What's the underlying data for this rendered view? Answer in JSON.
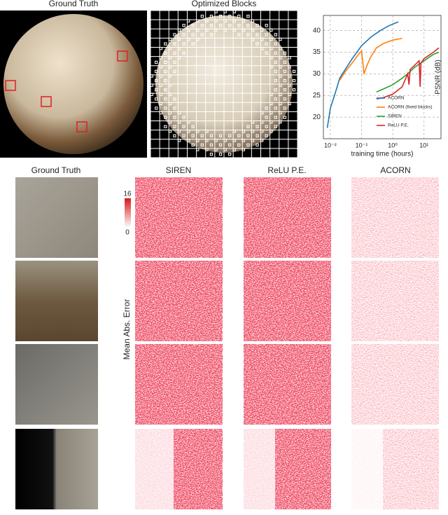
{
  "panels": {
    "left_title": "Ground Truth",
    "middle_title": "Optimized Blocks"
  },
  "columns": [
    "Ground Truth",
    "SIREN",
    "ReLU P.E.",
    "ACORN"
  ],
  "colorbar": {
    "max": 16,
    "min": 0,
    "label": "Mean Abs. Error"
  },
  "chart_data": {
    "type": "line",
    "xlabel": "training time (hours)",
    "ylabel": "PSNR (dB)",
    "xscale": "log",
    "grid": true,
    "legend": "lower right",
    "xlim": [
      0.006,
      35
    ],
    "ylim": [
      15,
      43.5
    ],
    "xticks": [
      {
        "value": 0.01,
        "label": "10⁻²"
      },
      {
        "value": 0.1,
        "label": "10⁻¹"
      },
      {
        "value": 1,
        "label": "10⁰"
      },
      {
        "value": 10,
        "label": "10¹"
      }
    ],
    "yticks": [
      20,
      25,
      30,
      35,
      40
    ],
    "series": [
      {
        "name": "ACORN",
        "color": "#1f77b4",
        "x": [
          0.008,
          0.01,
          0.015,
          0.02,
          0.03,
          0.05,
          0.1,
          0.2,
          0.4,
          0.7,
          1,
          1.5
        ],
        "values": [
          17.5,
          22,
          26,
          29,
          31,
          33.5,
          36.5,
          38.5,
          40,
          41,
          41.5,
          42
        ]
      },
      {
        "name": "ACORN (fixed blocks)",
        "color": "#ff7f0e",
        "x": [
          0.02,
          0.03,
          0.05,
          0.08,
          0.1,
          0.12,
          0.15,
          0.2,
          0.3,
          0.5,
          1,
          2
        ],
        "values": [
          28.5,
          30.5,
          32.5,
          34.5,
          35.3,
          30,
          32,
          34,
          36,
          37,
          37.8,
          38.2
        ]
      },
      {
        "name": "SIREN",
        "color": "#2ca02c",
        "x": [
          0.3,
          0.5,
          1,
          2,
          3,
          5,
          10,
          20,
          30
        ],
        "values": [
          25.8,
          26.5,
          27.5,
          29,
          30,
          31.5,
          33,
          34.5,
          35
        ]
      },
      {
        "name": "ReLU P.E.",
        "color": "#d62728",
        "x": [
          0.3,
          0.5,
          1,
          2,
          3,
          3.3,
          3.6,
          5,
          7,
          7.5,
          8,
          10,
          20,
          30
        ],
        "values": [
          24.2,
          24.5,
          25.3,
          27,
          30,
          27.5,
          31,
          32,
          33,
          27,
          32.5,
          33.5,
          35,
          36
        ]
      }
    ]
  }
}
